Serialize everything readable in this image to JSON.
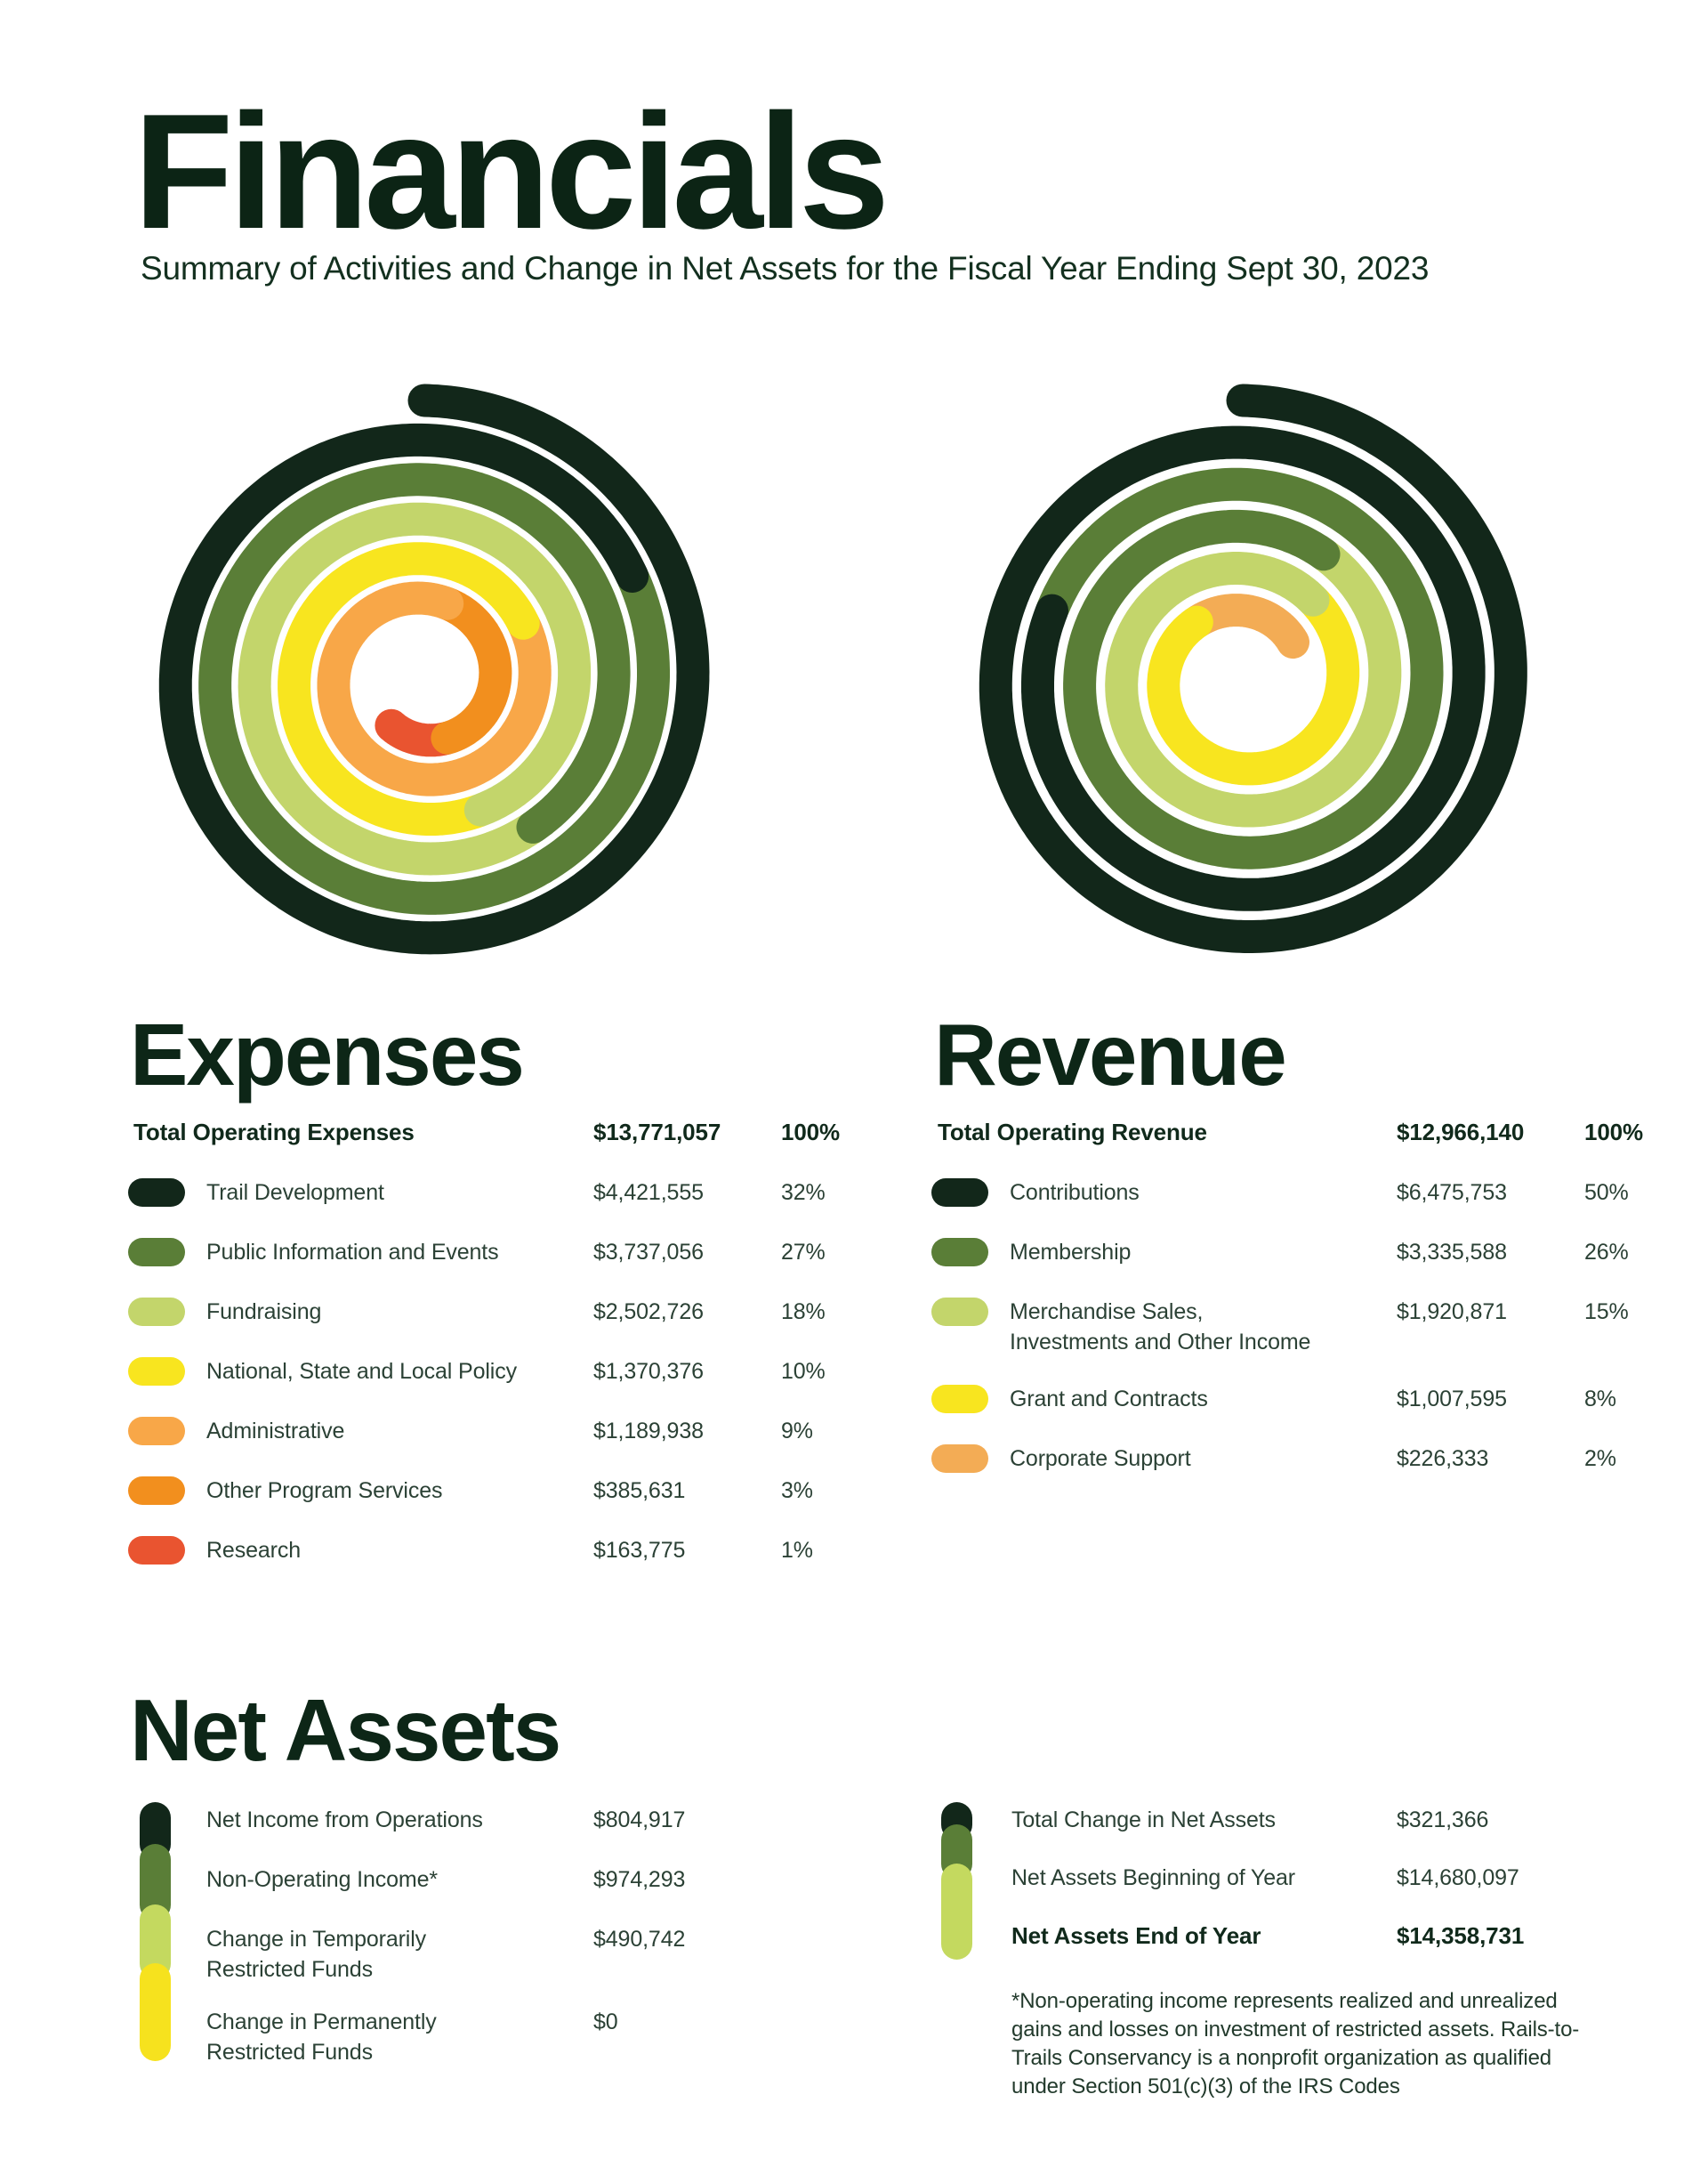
{
  "header": {
    "title": "Financials",
    "subtitle": "Summary of Activities and Change in Net Assets for the Fiscal Year Ending Sept 30, 2023"
  },
  "palette": {
    "dark_green": "#12271A",
    "medium_green": "#5A7E37",
    "light_green": "#C3D56B",
    "yellow": "#F8E51F",
    "amber": "#F8A748",
    "orange": "#F28F1E",
    "red_orange": "#E95430",
    "bar_light_green": "#C4D95F",
    "bar_yellow": "#F6E21E"
  },
  "expenses": {
    "heading": "Expenses",
    "total": {
      "label": "Total Operating Expenses",
      "value": "$13,771,057",
      "pct": "100%"
    },
    "rows": [
      {
        "label": "Trail Development",
        "value": "$4,421,555",
        "pct": "32%",
        "pct_num": 32,
        "color": "#12271A"
      },
      {
        "label": "Public Information and Events",
        "value": "$3,737,056",
        "pct": "27%",
        "pct_num": 27,
        "color": "#5A7E37"
      },
      {
        "label": "Fundraising",
        "value": "$2,502,726",
        "pct": "18%",
        "pct_num": 18,
        "color": "#C3D56B"
      },
      {
        "label": "National, State and Local Policy",
        "value": "$1,370,376",
        "pct": "10%",
        "pct_num": 10,
        "color": "#F8E51F"
      },
      {
        "label": "Administrative",
        "value": "$1,189,938",
        "pct": "9%",
        "pct_num": 9,
        "color": "#F8A748"
      },
      {
        "label": "Other Program Services",
        "value": "$385,631",
        "pct": "3%",
        "pct_num": 3,
        "color": "#F28F1E"
      },
      {
        "label": "Research",
        "value": "$163,775",
        "pct": "1%",
        "pct_num": 1,
        "color": "#E95430"
      }
    ]
  },
  "revenue": {
    "heading": "Revenue",
    "total": {
      "label": "Total Operating Revenue",
      "value": "$12,966,140",
      "pct": "100%"
    },
    "rows": [
      {
        "label": "Contributions",
        "value": "$6,475,753",
        "pct": "50%",
        "pct_num": 50,
        "color": "#12271A"
      },
      {
        "label": "Membership",
        "value": "$3,335,588",
        "pct": "26%",
        "pct_num": 26,
        "color": "#5A7E37"
      },
      {
        "label": "Merchandise Sales,",
        "label2": "Investments and Other Income",
        "value": "$1,920,871",
        "pct": "15%",
        "pct_num": 15,
        "color": "#C3D56B"
      },
      {
        "label": "Grant and Contracts",
        "value": "$1,007,595",
        "pct": "8%",
        "pct_num": 8,
        "color": "#F8E51F"
      },
      {
        "label": "Corporate Support",
        "value": "$226,333",
        "pct": "2%",
        "pct_num": 2,
        "color": "#F3AC55"
      }
    ]
  },
  "net_assets": {
    "heading": "Net Assets",
    "left": {
      "bar_colors": [
        "#12271A",
        "#5A7E37",
        "#C4D95F",
        "#F6E21E"
      ],
      "rows": [
        {
          "label": "Net Income from Operations",
          "value": "$804,917"
        },
        {
          "label": "Non-Operating Income*",
          "value": "$974,293"
        },
        {
          "label": "Change in Temporarily",
          "label2": "Restricted Funds",
          "value": "$490,742"
        },
        {
          "label": "Change in Permanently",
          "label2": "Restricted Funds",
          "value": "$0"
        }
      ]
    },
    "right": {
      "bar_colors": [
        "#12271A",
        "#5A7E37",
        "#C4D95F"
      ],
      "rows": [
        {
          "label": "Total Change in Net Assets",
          "value": "$321,366"
        },
        {
          "label": "Net Assets Beginning of Year",
          "value": "$14,680,097"
        },
        {
          "label": "Net Assets End of Year",
          "value": "$14,358,731",
          "bold": true
        }
      ]
    },
    "footnote": "*Non-operating income represents realized and unrealized gains and losses on investment of restricted assets. Rails-to-Trails Conservancy is a nonprofit organization as qualified under Section 501(c)(3) of the IRS Codes"
  },
  "chart_data": [
    {
      "type": "pie",
      "variant": "spiral-donut",
      "title": "Expenses",
      "total_label": "Total Operating Expenses",
      "total_value": 13771057,
      "categories": [
        "Trail Development",
        "Public Information and Events",
        "Fundraising",
        "National, State and Local Policy",
        "Administrative",
        "Other Program Services",
        "Research"
      ],
      "values": [
        4421555,
        3737056,
        2502726,
        1370376,
        1189938,
        385631,
        163775
      ],
      "percents": [
        32,
        27,
        18,
        10,
        9,
        3,
        1
      ],
      "colors": [
        "#12271A",
        "#5A7E37",
        "#C3D56B",
        "#F8E51F",
        "#F8A748",
        "#F28F1E",
        "#E95430"
      ],
      "legend_position": "below"
    },
    {
      "type": "pie",
      "variant": "spiral-donut",
      "title": "Revenue",
      "total_label": "Total Operating Revenue",
      "total_value": 12966140,
      "categories": [
        "Contributions",
        "Membership",
        "Merchandise Sales, Investments and Other Income",
        "Grant and Contracts",
        "Corporate Support"
      ],
      "values": [
        6475753,
        3335588,
        1920871,
        1007595,
        226333
      ],
      "percents": [
        50,
        26,
        15,
        8,
        2
      ],
      "colors": [
        "#12271A",
        "#5A7E37",
        "#C3D56B",
        "#F8E51F",
        "#F3AC55"
      ],
      "legend_position": "below"
    },
    {
      "type": "table",
      "title": "Net Assets",
      "rows": [
        [
          "Net Income from Operations",
          804917
        ],
        [
          "Non-Operating Income*",
          974293
        ],
        [
          "Change in Temporarily Restricted Funds",
          490742
        ],
        [
          "Change in Permanently Restricted Funds",
          0
        ],
        [
          "Total Change in Net Assets",
          321366
        ],
        [
          "Net Assets Beginning of Year",
          14680097
        ],
        [
          "Net Assets End of Year",
          14358731
        ]
      ]
    }
  ]
}
